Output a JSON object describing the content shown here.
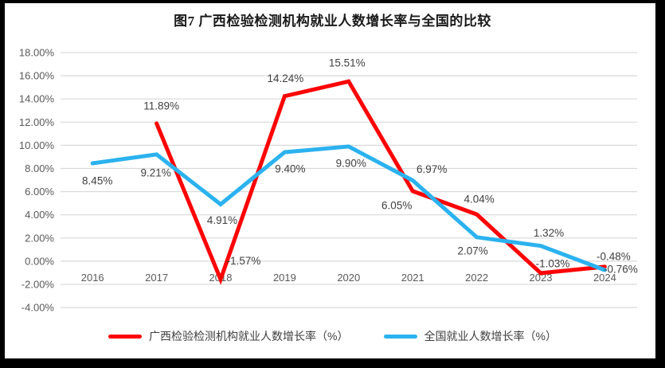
{
  "title": "图7 广西检验检测机构就业人数增长率与全国的比较",
  "chart_data": {
    "type": "line",
    "title": "图7 广西检验检测机构就业人数增长率与全国的比较",
    "categories": [
      "2016",
      "2017",
      "2018",
      "2019",
      "2020",
      "2021",
      "2022",
      "2023",
      "2024"
    ],
    "series": [
      {
        "name": "广西检验检测机构就业人数增长率（%）",
        "color": "#FF0000",
        "values": [
          null,
          11.89,
          -1.57,
          14.24,
          15.51,
          6.05,
          4.04,
          -1.03,
          -0.48
        ],
        "labels": [
          "",
          "11.89%",
          "-1.57%",
          "14.24%",
          "15.51%",
          "6.05%",
          "4.04%",
          "-1.03%",
          "-0.48%"
        ]
      },
      {
        "name": "全国就业人数增长率（%）",
        "color": "#2BB2EF",
        "values": [
          8.45,
          9.21,
          4.91,
          9.4,
          9.9,
          6.97,
          2.07,
          1.32,
          -0.76
        ],
        "labels": [
          "8.45%",
          "9.21%",
          "4.91%",
          "9.40%",
          "9.90%",
          "6.97%",
          "2.07%",
          "1.32%",
          "-0.76%"
        ]
      }
    ],
    "yticks": [
      18,
      16,
      14,
      12,
      10,
      8,
      6,
      4,
      2,
      0,
      -2,
      -4
    ],
    "ytick_labels": [
      "18.00%",
      "16.00%",
      "14.00%",
      "12.00%",
      "10.00%",
      "8.00%",
      "6.00%",
      "4.00%",
      "2.00%",
      "0.00%",
      "-2.00%",
      "-4.00%"
    ],
    "ylim": [
      -4,
      18
    ],
    "grid": true,
    "grid_color": "#D9D9D9",
    "axis_label_color": "#595959",
    "legend_position": "bottom"
  }
}
